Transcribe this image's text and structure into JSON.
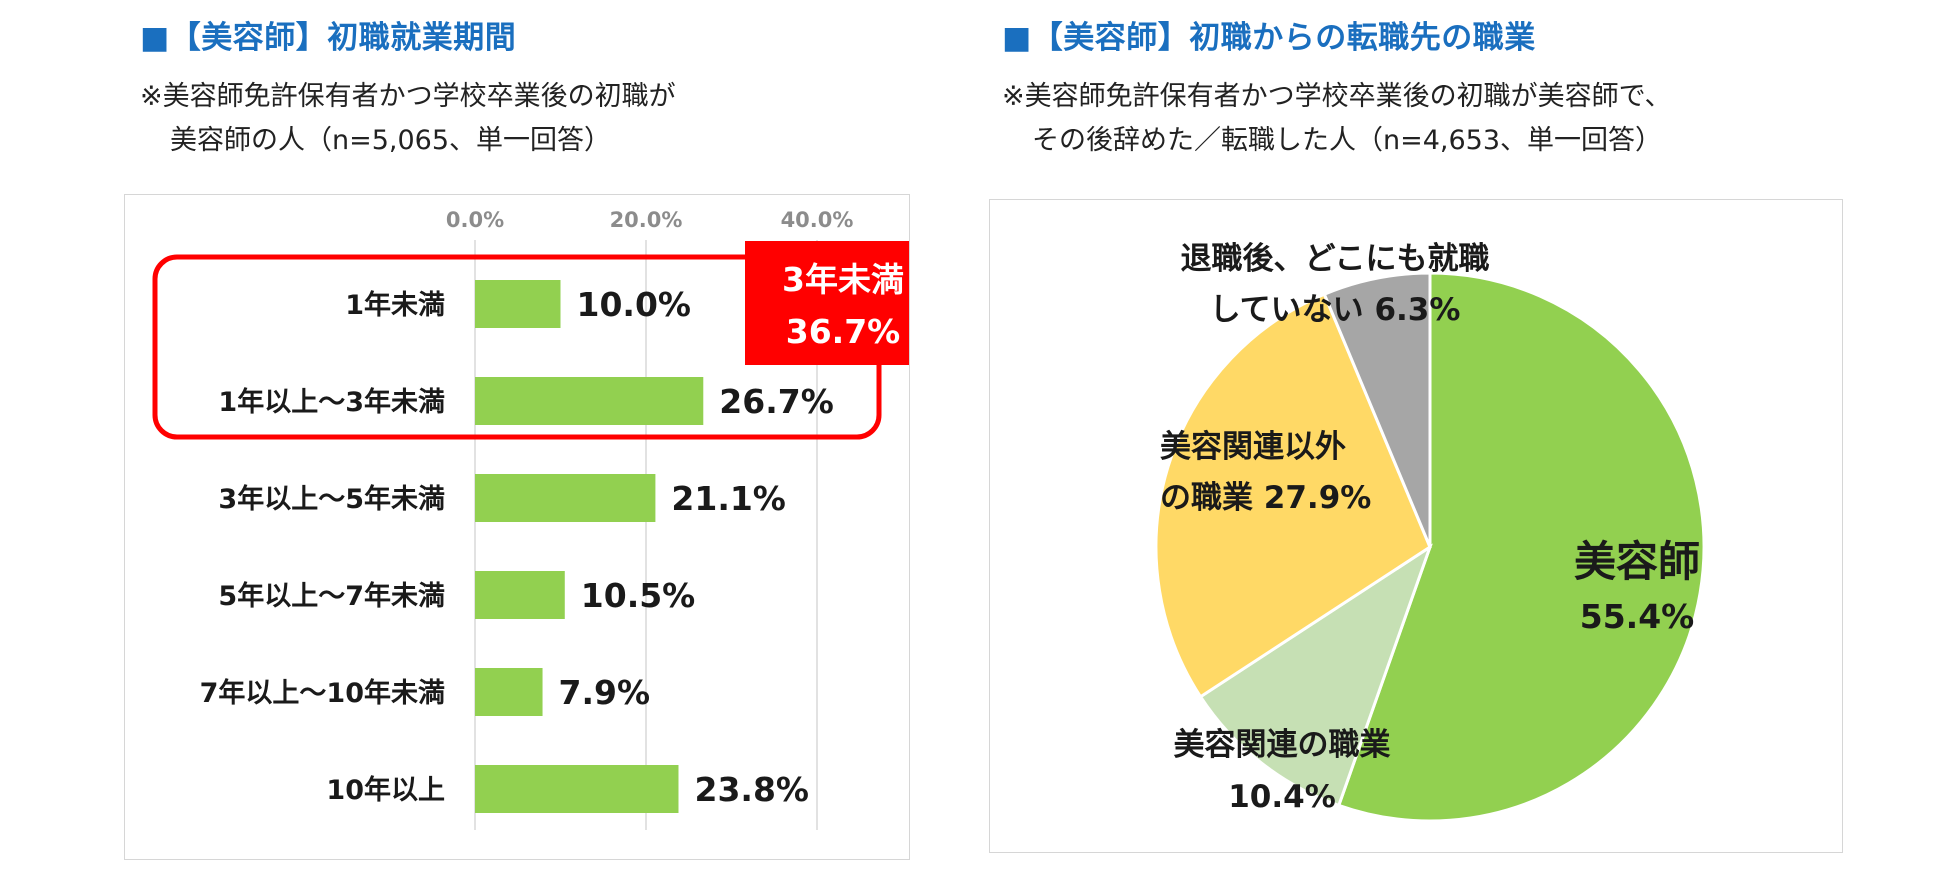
{
  "panels": [
    {
      "title": "■【美容師】初職就業期間",
      "note": [
        "※美容師免許保有者かつ学校卒業後の初職が",
        "美容師の人（n=5,065、単一回答）"
      ]
    },
    {
      "title": "■【美容師】初職からの転職先の職業",
      "note": [
        "※美容師免許保有者かつ学校卒業後の初職が美容師で、",
        "その後辞めた／転職した人（n=4,653、単一回答）"
      ]
    }
  ],
  "colors": {
    "title": "#1a6fbf",
    "bar": "#92d050",
    "highlight": "#ff0000"
  },
  "chart_data": [
    {
      "type": "bar",
      "orientation": "horizontal",
      "axis_ticks": [
        "0.0%",
        "20.0%",
        "40.0%"
      ],
      "xlim": [
        0,
        45
      ],
      "grid": true,
      "categories": [
        "1年未満",
        "1年以上～3年未満",
        "3年以上～5年未満",
        "5年以上～7年未満",
        "7年以上～10年未満",
        "10年以上"
      ],
      "values": [
        10.0,
        26.7,
        21.1,
        10.5,
        7.9,
        23.8
      ],
      "value_labels": [
        "10.0%",
        "26.7%",
        "21.1%",
        "10.5%",
        "7.9%",
        "23.8%"
      ],
      "annotation": {
        "line1": "3年未満",
        "line2": "36.7%",
        "covers": [
          "1年未満",
          "1年以上～3年未満"
        ]
      }
    },
    {
      "type": "pie",
      "start": "top",
      "direction": "clockwise",
      "slices": [
        {
          "lines": [
            "美容師",
            "55.4%"
          ],
          "value": 55.4,
          "color": "#92d050"
        },
        {
          "lines": [
            "美容関連の職業",
            "10.4%"
          ],
          "value": 10.4,
          "color": "#c6e0b4"
        },
        {
          "lines": [
            "美容関連以外",
            "の職業 27.9%"
          ],
          "value": 27.9,
          "color": "#ffd966"
        },
        {
          "lines": [
            "退職後、どこにも就職",
            "していない 6.3%"
          ],
          "value": 6.3,
          "color": "#a6a6a6"
        }
      ]
    }
  ]
}
